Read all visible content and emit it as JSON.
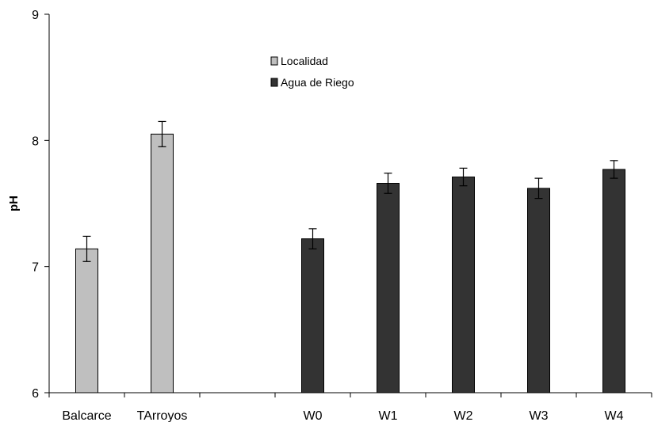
{
  "chart_data": {
    "type": "bar",
    "title": "",
    "xlabel": "",
    "ylabel": "pH",
    "ylim": [
      6,
      9
    ],
    "yticks": [
      "6",
      "7",
      "8",
      "9"
    ],
    "categories": [
      "Balcarce",
      "TArroyos",
      "",
      "W0",
      "W1",
      "W2",
      "W3",
      "W4"
    ],
    "grid": false,
    "legend_position": "top-center",
    "series": [
      {
        "name": "Localidad",
        "color": "#bfbfbf",
        "values": [
          7.14,
          8.05,
          null,
          null,
          null,
          null,
          null,
          null
        ],
        "errors": [
          0.1,
          0.1,
          null,
          null,
          null,
          null,
          null,
          null
        ]
      },
      {
        "name": "Agua de Riego",
        "color": "#333333",
        "values": [
          null,
          null,
          null,
          7.22,
          7.66,
          7.71,
          7.62,
          7.77
        ],
        "errors": [
          null,
          null,
          null,
          0.08,
          0.08,
          0.07,
          0.08,
          0.07
        ]
      }
    ]
  }
}
